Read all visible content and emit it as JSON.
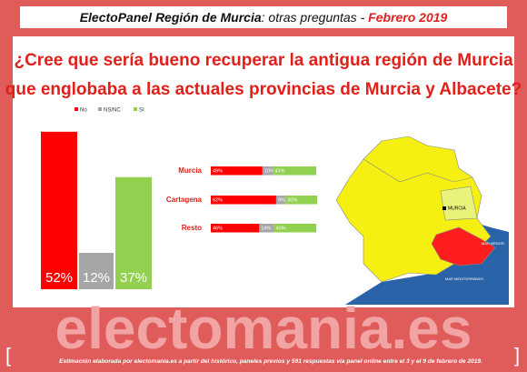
{
  "header": {
    "title": [
      "ElectoPanel Región de Murcia",
      ": otras preguntas - ",
      "Febrero 2019"
    ]
  },
  "question": [
    "¿Cree que sería bueno recuperar la antigua región de Murcia",
    "que englobaba a las actuales provincias de Murcia y Albacete?"
  ],
  "chart_data": [
    {
      "type": "bar",
      "series": [
        {
          "name": "No",
          "color": "#ff0000",
          "values": [
            52
          ],
          "value_labels": [
            "52%"
          ]
        },
        {
          "name": "NS/NC",
          "color": "#a6a6a6",
          "values": [
            12
          ],
          "value_labels": [
            "12%"
          ]
        },
        {
          "name": "Sí",
          "color": "#92d050",
          "values": [
            37
          ],
          "value_labels": [
            "37%"
          ]
        }
      ]
    },
    {
      "type": "stacked_bar_h",
      "categories": [
        "Murcia",
        "Cartagena",
        "Resto"
      ],
      "series": [
        {
          "color": "#ff0000",
          "values": [
            49,
            62,
            46
          ],
          "value_labels": [
            "49%",
            "62%",
            "46%"
          ]
        },
        {
          "color": "#a6a6a6",
          "values": [
            10,
            9,
            14
          ],
          "value_labels": [
            "10%",
            "9%",
            "14%"
          ]
        },
        {
          "color": "#92d050",
          "values": [
            41,
            30,
            40
          ],
          "value_labels": [
            "41%",
            "30%",
            "40%"
          ]
        }
      ]
    }
  ],
  "map": {
    "labels": [
      "MURCIA",
      "MAR MENOR",
      "MAR MEDITERRÁNEO"
    ]
  },
  "footer": {
    "brand": "electomania.es",
    "note": "Estimación elaborada por electomania.es a partir del histórico, paneles previos y 591 respuestas vía panel online entre el 3 y el 9 de febrero de 2019."
  }
}
